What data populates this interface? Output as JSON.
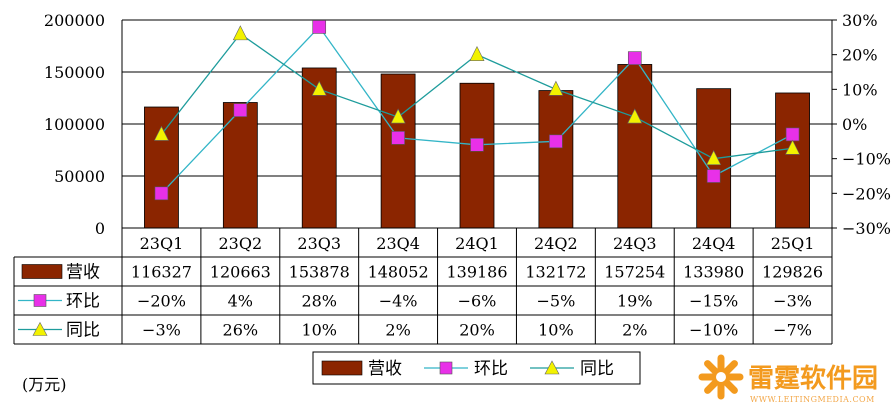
{
  "chart_data": {
    "type": "bar",
    "categories": [
      "23Q1",
      "23Q2",
      "23Q3",
      "23Q4",
      "24Q1",
      "24Q2",
      "24Q3",
      "24Q4",
      "25Q1"
    ],
    "series": [
      {
        "name": "营收",
        "kind": "bar",
        "axis": "left",
        "color": "#8B2500",
        "values": [
          116327,
          120663,
          153878,
          148052,
          139186,
          132172,
          157254,
          133980,
          129826
        ]
      },
      {
        "name": "环比",
        "kind": "line",
        "axis": "right",
        "color": "#33B5C7",
        "marker": "square",
        "marker_color": "#E830E8",
        "values": [
          -20,
          4,
          28,
          -4,
          -6,
          -5,
          19,
          -15,
          -3
        ]
      },
      {
        "name": "同比",
        "kind": "line",
        "axis": "right",
        "color": "#1E9C9C",
        "marker": "triangle",
        "marker_color": "#F2F200",
        "values": [
          -3,
          26,
          10,
          2,
          20,
          10,
          2,
          -10,
          -7
        ]
      }
    ],
    "table_rows": [
      {
        "label": "营收",
        "cells": [
          "116327",
          "120663",
          "153878",
          "148052",
          "139186",
          "132172",
          "157254",
          "133980",
          "129826"
        ]
      },
      {
        "label": "环比",
        "cells": [
          "−20%",
          "4%",
          "28%",
          "−4%",
          "−6%",
          "−5%",
          "19%",
          "−15%",
          "−3%"
        ]
      },
      {
        "label": "同比",
        "cells": [
          "−3%",
          "26%",
          "10%",
          "2%",
          "20%",
          "10%",
          "2%",
          "−10%",
          "−7%"
        ]
      }
    ],
    "y_left": {
      "min": 0,
      "max": 200000,
      "ticks": [
        "0",
        "50000",
        "100000",
        "150000",
        "200000"
      ]
    },
    "y_right": {
      "min": -30,
      "max": 30,
      "ticks": [
        "−30%",
        "−20%",
        "−10%",
        "0%",
        "10%",
        "20%",
        "30%"
      ]
    },
    "unit_label": "(万元)",
    "legend": [
      "营收",
      "环比",
      "同比"
    ],
    "grid": true
  },
  "watermark": {
    "brand": "雷霆软件园",
    "url": "WWW.LEITINGMEDIA.COM"
  }
}
